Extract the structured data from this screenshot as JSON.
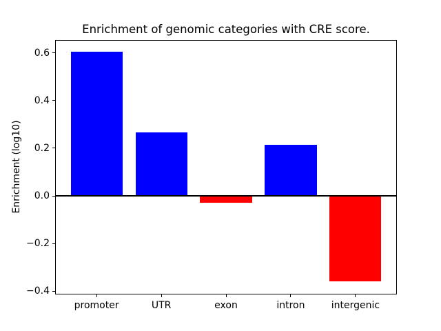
{
  "figure": {
    "background": "#ffffff"
  },
  "chart_data": {
    "type": "bar",
    "title": "Enrichment of genomic categories with CRE score.",
    "xlabel": "",
    "ylabel": "Enrichment (log10)",
    "categories": [
      "promoter",
      "UTR",
      "exon",
      "intron",
      "intergenic"
    ],
    "values": [
      0.605,
      0.265,
      -0.03,
      0.215,
      -0.36
    ],
    "bar_color_positive": "#0000ff",
    "bar_color_negative": "#ff0000",
    "bar_width_units": 0.8,
    "xlim": [
      -0.64,
      4.64
    ],
    "ylim": [
      -0.414,
      0.654
    ],
    "yticks": [
      {
        "value": 0.6,
        "label": "0.6"
      },
      {
        "value": 0.4,
        "label": "0.4"
      },
      {
        "value": 0.2,
        "label": "0.2"
      },
      {
        "value": 0.0,
        "label": "0.0"
      },
      {
        "value": -0.2,
        "label": "−0.2"
      },
      {
        "value": -0.4,
        "label": "−0.4"
      }
    ],
    "zero_line": true,
    "grid": false,
    "legend": null
  }
}
